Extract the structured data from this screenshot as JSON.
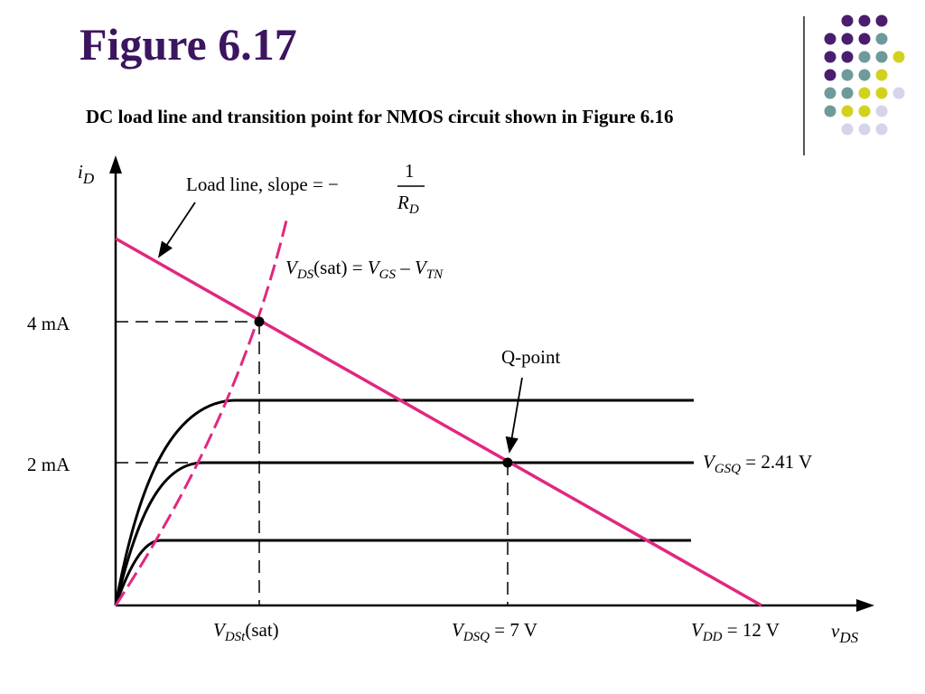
{
  "slide": {
    "title": "Figure 6.17",
    "subtitle": "DC load line and transition point for NMOS circuit shown in Figure 6.16"
  },
  "colors": {
    "title": "#3b1560",
    "load_line": "#e0287f",
    "dot_purple": "#4b1d6e",
    "dot_teal": "#6e9a9a",
    "dot_yellow": "#d2d21e",
    "dot_lavender": "#d4d4ea"
  },
  "diagram": {
    "y_axis": {
      "main": "i",
      "sub": "D"
    },
    "x_axis": {
      "main": "v",
      "sub": "DS"
    },
    "y_ticks": [
      "4 mA",
      "2 mA"
    ],
    "load_line_label": "Load line, slope = −",
    "slope_num": "1",
    "slope_den_main": "R",
    "slope_den_sub": "D",
    "sat_curve_label": {
      "v1": "V",
      "s1": "DS",
      "t1": "(sat) = ",
      "v2": "V",
      "s2": "GS",
      "t2": " – ",
      "v3": "V",
      "s3": "TN"
    },
    "qpoint_label": "Q-point",
    "vgsq_label": {
      "v": "V",
      "s": "GSQ",
      "t": " = 2.41 V"
    },
    "x_ticks": {
      "vdst": {
        "v": "V",
        "s": "DSt",
        "t": "(sat)"
      },
      "vdsq": {
        "v": "V",
        "s": "DSQ",
        "t": " = 7 V"
      },
      "vdd": {
        "v": "V",
        "s": "DD",
        "t": " = 12 V"
      }
    }
  }
}
